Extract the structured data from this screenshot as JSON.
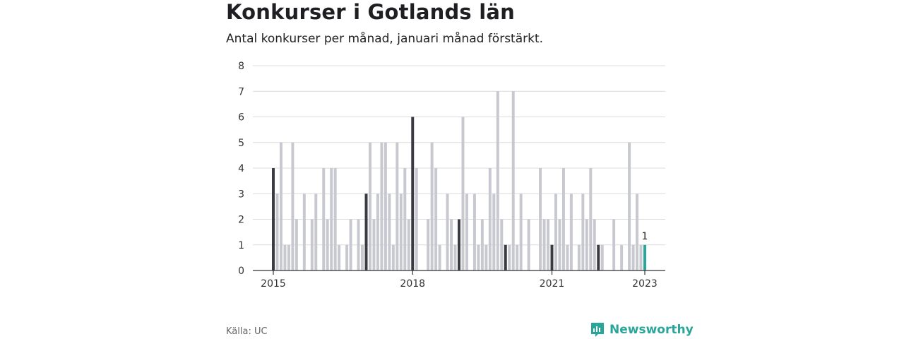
{
  "header": {
    "title": "Konkurser i Gotlands län",
    "subtitle": "Antal konkurser per månad, januari månad förstärkt."
  },
  "footer": {
    "source": "Källa: UC",
    "brand": "Newsworthy"
  },
  "colors": {
    "regular_bar": "#c8c8d0",
    "january_bar": "#3a3a42",
    "latest_bar": "#2aa59a",
    "grid": "#dcdcdc",
    "axis": "#333333",
    "brand": "#2aa59a"
  },
  "chart_data": {
    "type": "bar",
    "title": "Konkurser i Gotlands län",
    "subtitle": "Antal konkurser per månad, januari månad förstärkt.",
    "x_start": "2015-01",
    "x_end": "2023-01",
    "xticks": [
      {
        "label": "2015",
        "month": "2015-01"
      },
      {
        "label": "2018",
        "month": "2018-01"
      },
      {
        "label": "2021",
        "month": "2021-01"
      },
      {
        "label": "2023",
        "month": "2023-01"
      }
    ],
    "ylim": [
      0,
      8
    ],
    "yticks": [
      0,
      1,
      2,
      3,
      4,
      5,
      6,
      7,
      8
    ],
    "grid": true,
    "highlight": "January months darker; latest month teal",
    "annotations": [
      {
        "month": "2023-01",
        "label": "1"
      }
    ],
    "values": [
      4,
      3,
      5,
      1,
      1,
      5,
      2,
      0,
      3,
      0,
      2,
      3,
      0,
      4,
      2,
      4,
      4,
      1,
      0,
      1,
      2,
      0,
      2,
      1,
      3,
      5,
      2,
      3,
      5,
      5,
      3,
      1,
      5,
      3,
      4,
      2,
      6,
      4,
      0,
      0,
      2,
      5,
      4,
      1,
      0,
      3,
      2,
      1,
      2,
      6,
      3,
      0,
      3,
      1,
      2,
      1,
      4,
      3,
      7,
      2,
      1,
      1,
      7,
      1,
      3,
      0,
      2,
      0,
      0,
      4,
      2,
      2,
      1,
      3,
      2,
      4,
      1,
      3,
      0,
      1,
      3,
      2,
      4,
      2,
      1,
      1,
      0,
      0,
      2,
      0,
      1,
      0,
      5,
      1,
      3,
      1,
      1
    ]
  }
}
